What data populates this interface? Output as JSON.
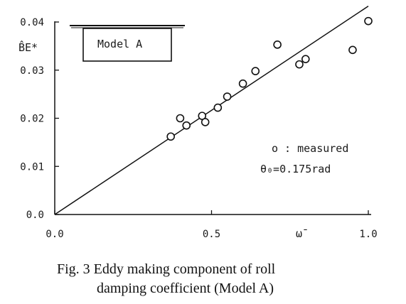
{
  "chart_data": {
    "type": "scatter",
    "title": "",
    "xlabel": "ω̄",
    "ylabel": "B̂E*",
    "xlim": [
      0,
      1.0
    ],
    "ylim": [
      0,
      0.04
    ],
    "x_ticks": [
      "0.0",
      "0.5",
      "1.0"
    ],
    "y_ticks": [
      "0.0",
      "0.01",
      "0.02",
      "0.03",
      "0.04"
    ],
    "grid": false,
    "model_label": "Model A",
    "legend": {
      "marker_label": "o : measured",
      "condition": "θ₀=0.175rad",
      "position": "right"
    },
    "series": [
      {
        "name": "measured",
        "points": [
          {
            "x": 0.37,
            "y": 0.0162
          },
          {
            "x": 0.4,
            "y": 0.02
          },
          {
            "x": 0.42,
            "y": 0.0185
          },
          {
            "x": 0.47,
            "y": 0.0205
          },
          {
            "x": 0.48,
            "y": 0.0192
          },
          {
            "x": 0.52,
            "y": 0.0222
          },
          {
            "x": 0.55,
            "y": 0.0245
          },
          {
            "x": 0.6,
            "y": 0.0272
          },
          {
            "x": 0.64,
            "y": 0.0298
          },
          {
            "x": 0.71,
            "y": 0.0353
          },
          {
            "x": 0.78,
            "y": 0.0312
          },
          {
            "x": 0.8,
            "y": 0.0323
          },
          {
            "x": 0.95,
            "y": 0.0342
          },
          {
            "x": 1.0,
            "y": 0.0402
          }
        ]
      }
    ],
    "fit_line": {
      "x": [
        0,
        1.0
      ],
      "y": [
        0,
        0.0433
      ]
    }
  },
  "caption": {
    "line1": "Fig. 3  Eddy making component of roll",
    "line2": "damping coefficient (Model A)"
  }
}
